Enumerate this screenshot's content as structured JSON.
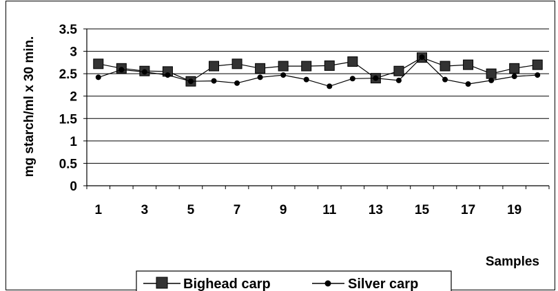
{
  "chart_data": {
    "type": "line",
    "title": "",
    "xlabel": "Samples",
    "ylabel": "mg starch/ml x 30 min.",
    "ylim": [
      0,
      3.5
    ],
    "yticks": [
      "0",
      "0.5",
      "1",
      "1.5",
      "2",
      "2.5",
      "3",
      "3.5"
    ],
    "x": [
      1,
      2,
      3,
      4,
      5,
      6,
      7,
      8,
      9,
      10,
      11,
      12,
      13,
      14,
      15,
      16,
      17,
      18,
      19,
      20
    ],
    "xtick_labels": [
      "1",
      "3",
      "5",
      "7",
      "9",
      "11",
      "13",
      "15",
      "17",
      "19"
    ],
    "grid": "horizontal",
    "legend": "bottom",
    "series": [
      {
        "name": "Bighead carp",
        "marker": "square",
        "color": "#000000",
        "values": [
          2.72,
          2.62,
          2.56,
          2.55,
          2.33,
          2.67,
          2.72,
          2.62,
          2.67,
          2.67,
          2.68,
          2.77,
          2.4,
          2.56,
          2.86,
          2.67,
          2.7,
          2.5,
          2.62,
          2.7
        ]
      },
      {
        "name": "Silver carp",
        "marker": "circle",
        "color": "#000000",
        "values": [
          2.42,
          2.59,
          2.54,
          2.47,
          2.33,
          2.34,
          2.29,
          2.42,
          2.47,
          2.37,
          2.22,
          2.39,
          2.4,
          2.35,
          2.87,
          2.37,
          2.27,
          2.35,
          2.44,
          2.47
        ]
      }
    ]
  }
}
